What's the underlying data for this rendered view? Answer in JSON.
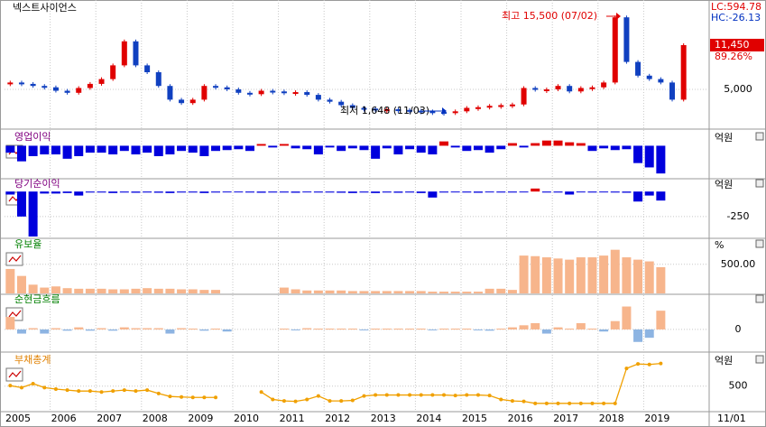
{
  "title": "넥스트사이언스",
  "x_axis": {
    "labels": [
      "2005",
      "2006",
      "2007",
      "2008",
      "2009",
      "2010",
      "2011",
      "2012",
      "2013",
      "2014",
      "2015",
      "2016",
      "2017",
      "2018",
      "2019",
      "11/01"
    ]
  },
  "chart_data": [
    {
      "type": "candle",
      "lc_label": "LC:594.78",
      "hc_label": "HC:-26.13",
      "last_label": "11,450",
      "change_label": "89.26%",
      "annotations": [
        "최고 15,500 (07/02)",
        "최저 1,648 (11/03)"
      ],
      "up_color": "#e00000",
      "down_color": "#1040c0",
      "ylim": [
        0,
        17500
      ],
      "yticks": [
        {
          "value": 5000,
          "label": "5,000"
        }
      ],
      "values": [
        6000,
        5800,
        5500,
        5300,
        4800,
        4500,
        5200,
        5800,
        6500,
        8500,
        12000,
        8500,
        7500,
        5500,
        3500,
        3000,
        3500,
        5500,
        5300,
        5000,
        4500,
        4300,
        4800,
        4700,
        4500,
        4600,
        4200,
        3500,
        3200,
        2700,
        2300,
        2200,
        2000,
        2100,
        2000,
        1900,
        1800,
        1700,
        1648,
        1800,
        2300,
        2400,
        2600,
        2700,
        2800,
        5200,
        5000,
        5000,
        5500,
        4700,
        5200,
        5300,
        6000,
        15500,
        9000,
        7000,
        6500,
        6000,
        3500,
        11450
      ]
    },
    {
      "type": "bar",
      "title": "영업이익",
      "title_color": "#800080",
      "unit": "억원",
      "up_color": "#e00000",
      "down_color": "#0000dd",
      "ylim": [
        -36,
        14
      ],
      "yticks": [],
      "values": [
        -8,
        -18,
        -12,
        -10,
        -10,
        -15,
        -12,
        -8,
        -8,
        -10,
        -6,
        -10,
        -8,
        -12,
        -10,
        -6,
        -8,
        -12,
        -6,
        -5,
        -4,
        -6,
        2,
        -2,
        2,
        -3,
        -4,
        -10,
        -2,
        -6,
        -3,
        -5,
        -15,
        -3,
        -10,
        -4,
        -8,
        -10,
        5,
        -2,
        -6,
        -5,
        -8,
        -4,
        3,
        -2,
        3,
        6,
        6,
        4,
        3,
        -6,
        -3,
        -5,
        -4,
        -20,
        -25,
        -32,
        null,
        null
      ]
    },
    {
      "type": "bar",
      "title": "당기순이익",
      "title_color": "#800080",
      "unit": "억원",
      "up_color": "#e00000",
      "down_color": "#0000dd",
      "ylim": [
        -450,
        110
      ],
      "yticks": [
        -250
      ],
      "values": [
        -30,
        -250,
        -450,
        -20,
        -20,
        -15,
        -40,
        -10,
        -10,
        -15,
        -10,
        -12,
        -10,
        -12,
        -15,
        -10,
        -10,
        -15,
        -10,
        -8,
        -8,
        -10,
        -12,
        -10,
        -10,
        -12,
        -8,
        -10,
        -10,
        -12,
        -15,
        -10,
        -15,
        -10,
        -12,
        -10,
        -15,
        -60,
        -10,
        -8,
        -10,
        -12,
        -8,
        -10,
        -10,
        -5,
        30,
        -10,
        -10,
        -30,
        -8,
        -10,
        -8,
        -10,
        -12,
        -100,
        -40,
        -90,
        null,
        null
      ]
    },
    {
      "type": "bar",
      "title": "유보율",
      "title_color": "#008000",
      "unit": "%",
      "up_color": "#f7b58c",
      "down_color": "#f7b58c",
      "ylim": [
        0,
        900
      ],
      "yticks": [
        {
          "value": 500,
          "label": "500.00"
        }
      ],
      "values": [
        420,
        300,
        150,
        100,
        120,
        90,
        80,
        80,
        80,
        70,
        70,
        80,
        90,
        80,
        80,
        70,
        70,
        60,
        60,
        null,
        null,
        null,
        null,
        null,
        100,
        70,
        50,
        50,
        50,
        50,
        40,
        40,
        40,
        40,
        40,
        40,
        40,
        30,
        30,
        30,
        30,
        30,
        80,
        80,
        60,
        650,
        640,
        620,
        600,
        580,
        620,
        620,
        650,
        750,
        620,
        580,
        550,
        450,
        null,
        null
      ]
    },
    {
      "type": "bar",
      "title": "순현금흐름",
      "title_color": "#008000",
      "up_color": "#f7b58c",
      "down_color": "#8db4e2",
      "ylim": [
        -50,
        80
      ],
      "yticks": [
        0
      ],
      "values": [
        30,
        -10,
        3,
        -10,
        3,
        -3,
        5,
        -3,
        3,
        -3,
        5,
        3,
        3,
        3,
        -10,
        3,
        2,
        -3,
        2,
        -5,
        null,
        null,
        null,
        null,
        2,
        -2,
        3,
        2,
        2,
        2,
        2,
        -2,
        2,
        2,
        2,
        2,
        2,
        -2,
        2,
        2,
        2,
        -2,
        -3,
        2,
        5,
        10,
        15,
        -10,
        5,
        2,
        15,
        2,
        -5,
        20,
        55,
        -30,
        -20,
        45,
        null,
        null
      ]
    },
    {
      "type": "line",
      "title": "부채총계",
      "title_color": "#e08000",
      "unit": "억원",
      "color": "#f0a000",
      "ylim": [
        0,
        1100
      ],
      "yticks": [
        500
      ],
      "values": [
        510,
        470,
        550,
        470,
        440,
        420,
        400,
        400,
        380,
        400,
        420,
        400,
        420,
        350,
        290,
        280,
        270,
        270,
        270,
        null,
        null,
        null,
        380,
        230,
        200,
        190,
        230,
        300,
        200,
        200,
        210,
        300,
        320,
        320,
        320,
        320,
        320,
        320,
        320,
        310,
        320,
        320,
        310,
        230,
        200,
        190,
        150,
        150,
        150,
        150,
        150,
        150,
        150,
        150,
        860,
        950,
        940,
        960,
        null,
        null
      ]
    }
  ]
}
